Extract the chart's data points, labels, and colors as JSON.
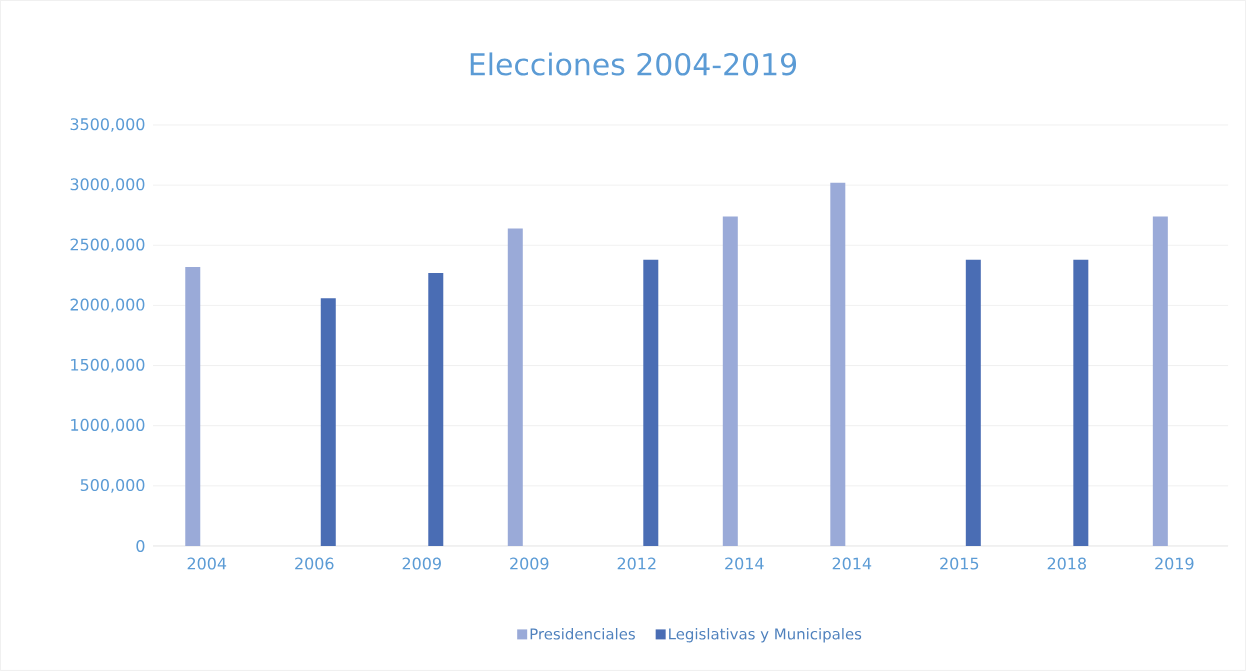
{
  "chart_data": {
    "type": "bar",
    "title": "Elecciones 2004-2019",
    "categories": [
      "2004",
      "2006",
      "2009",
      "2009",
      "2012",
      "2014",
      "2014",
      "2015",
      "2018",
      "2019"
    ],
    "series": [
      {
        "name": "Presidenciales",
        "color": "#9aaad8",
        "values": [
          2320000,
          null,
          null,
          2640000,
          null,
          2740000,
          3020000,
          null,
          null,
          2740000
        ]
      },
      {
        "name": "Legislativas y Municipales",
        "color": "#4a6db4",
        "values": [
          null,
          2060000,
          2270000,
          null,
          2380000,
          null,
          null,
          2380000,
          2380000,
          null
        ]
      }
    ],
    "ylim": [
      0,
      3500000
    ],
    "yticks": [
      {
        "value": 0,
        "label": "0"
      },
      {
        "value": 500000,
        "label": "500,000"
      },
      {
        "value": 1000000,
        "label": "1000,000"
      },
      {
        "value": 1500000,
        "label": "1500,000"
      },
      {
        "value": 2000000,
        "label": "2000,000"
      },
      {
        "value": 2500000,
        "label": "2500,000"
      },
      {
        "value": 3000000,
        "label": "3000,000"
      },
      {
        "value": 3500000,
        "label": "3500,000"
      }
    ],
    "grid": "y",
    "legend": "bottom"
  }
}
